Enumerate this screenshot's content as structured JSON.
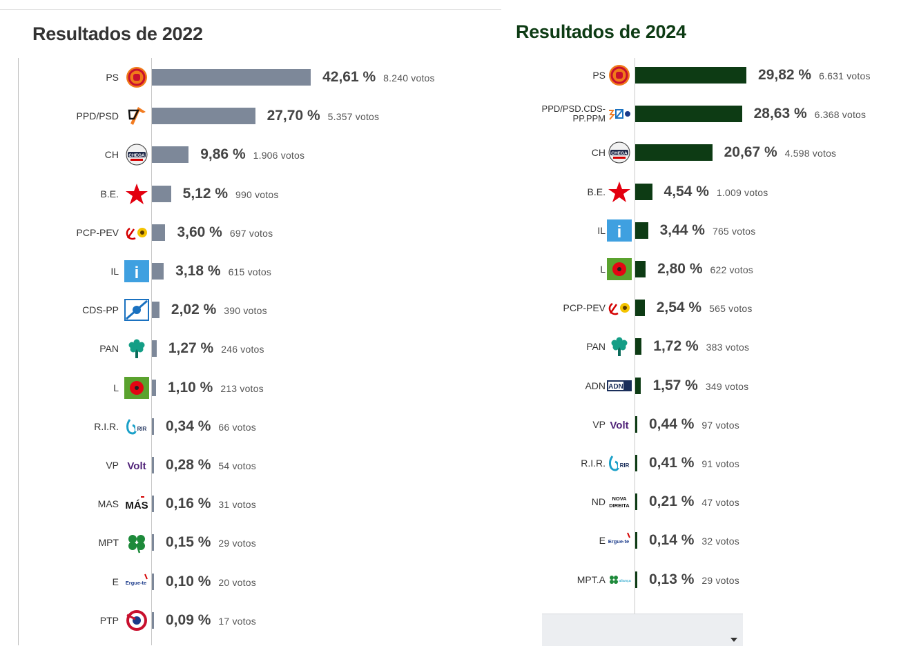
{
  "chart_data": [
    {
      "type": "bar",
      "orientation": "horizontal",
      "title": "Resultados de 2022",
      "bar_color": "#7d8899",
      "categories": [
        "PS",
        "PPD/PSD",
        "CH",
        "B.E.",
        "PCP-PEV",
        "IL",
        "CDS-PP",
        "PAN",
        "L",
        "R.I.R.",
        "VP",
        "MAS",
        "MPT",
        "E",
        "PTP"
      ],
      "values": [
        42.61,
        27.7,
        9.86,
        5.12,
        3.6,
        3.18,
        2.02,
        1.27,
        1.1,
        0.34,
        0.28,
        0.16,
        0.15,
        0.1,
        0.09
      ],
      "value_labels": [
        "42,61 %",
        "27,70 %",
        "9,86 %",
        "5,12 %",
        "3,60 %",
        "3,18 %",
        "2,02 %",
        "1,27 %",
        "1,10 %",
        "0,34 %",
        "0,28 %",
        "0,16 %",
        "0,15 %",
        "0,10 %",
        "0,09 %"
      ],
      "votes": [
        "8.240 votos",
        "5.357 votos",
        "1.906 votos",
        "990 votos",
        "697 votos",
        "615 votos",
        "390 votos",
        "246 votos",
        "213 votos",
        "66 votos",
        "54 votos",
        "31 votos",
        "29 votos",
        "20 votos",
        "17 votos"
      ],
      "logos": [
        "ps-logo",
        "psd-logo",
        "chega-logo",
        "be-star-logo",
        "pcp-pev-logo",
        "il-logo",
        "cds-pp-logo",
        "pan-tree-logo",
        "livre-poppy-logo",
        "rir-logo",
        "volt-logo",
        "mas-logo",
        "mpt-clover-logo",
        "ergue-te-logo",
        "ptp-logo"
      ],
      "logo_text": [
        "",
        "",
        "CHEGA",
        "",
        "",
        "i",
        "",
        "",
        "",
        "RIR",
        "Volt",
        "MÁS",
        "",
        "Ergue-te",
        ""
      ]
    },
    {
      "type": "bar",
      "orientation": "horizontal",
      "title": "Resultados de 2024",
      "bar_color": "#0d3b14",
      "categories": [
        "PS",
        "PPD/PSD.CDS-PP.PPM",
        "CH",
        "B.E.",
        "IL",
        "L",
        "PCP-PEV",
        "PAN",
        "ADN",
        "VP",
        "R.I.R.",
        "ND",
        "E",
        "MPT.A"
      ],
      "category_lines": [
        [
          "PS"
        ],
        [
          "PPD/PSD.CDS-",
          "PP.PPM"
        ],
        [
          "CH"
        ],
        [
          "B.E."
        ],
        [
          "IL"
        ],
        [
          "L"
        ],
        [
          "PCP-PEV"
        ],
        [
          "PAN"
        ],
        [
          "ADN"
        ],
        [
          "VP"
        ],
        [
          "R.I.R."
        ],
        [
          "ND"
        ],
        [
          "E"
        ],
        [
          "MPT.A"
        ]
      ],
      "values": [
        29.82,
        28.63,
        20.67,
        4.54,
        3.44,
        2.8,
        2.54,
        1.72,
        1.57,
        0.44,
        0.41,
        0.21,
        0.14,
        0.13
      ],
      "value_labels": [
        "29,82 %",
        "28,63 %",
        "20,67 %",
        "4,54 %",
        "3,44 %",
        "2,80 %",
        "2,54 %",
        "1,72 %",
        "1,57 %",
        "0,44 %",
        "0,41 %",
        "0,21 %",
        "0,14 %",
        "0,13 %"
      ],
      "votes": [
        "6.631 votos",
        "6.368 votos",
        "4.598 votos",
        "1.009 votos",
        "765 votos",
        "622 votos",
        "565 votos",
        "383 votos",
        "349 votos",
        "97 votos",
        "91 votos",
        "47 votos",
        "32 votos",
        "29 votos"
      ],
      "logos": [
        "ps-logo",
        "ad-logo",
        "chega-logo",
        "be-star-logo",
        "il-logo",
        "livre-poppy-logo",
        "pcp-pev-logo",
        "pan-tree-logo",
        "adn-logo",
        "volt-logo",
        "rir-logo",
        "nova-direita-logo",
        "ergue-te-logo",
        "mpt-a-logo"
      ],
      "logo_text": [
        "",
        "",
        "CHEGA",
        "",
        "i",
        "",
        "",
        "",
        "ADN",
        "Volt",
        "RIR",
        "NOVA DIREITA",
        "Ergue-te",
        "aliança"
      ]
    }
  ]
}
